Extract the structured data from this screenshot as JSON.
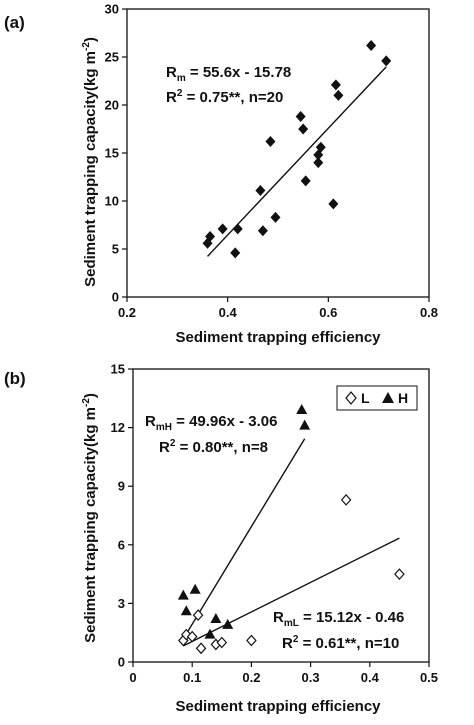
{
  "chart_data": [
    {
      "type": "scatter",
      "panel_label": "(a)",
      "xlabel": "Sediment trapping efficiency",
      "ylabel": "Sediment trapping capacity(kg m",
      "ylabel_sup": "-2",
      "ylabel_close": ")",
      "xlim": [
        0.2,
        0.8
      ],
      "ylim": [
        0,
        30
      ],
      "xticks": [
        "0.2",
        "0.4",
        "0.6",
        "0.8"
      ],
      "yticks": [
        "0",
        "5",
        "10",
        "15",
        "20",
        "25",
        "30"
      ],
      "grid": false,
      "equation_lines": [
        {
          "main": "R",
          "sub": "m",
          "rest": " = 55.6x - 15.78"
        },
        {
          "main": "R",
          "sup": "2",
          "rest": " = 0.75**, n=20"
        }
      ],
      "fit": {
        "slope": 55.6,
        "intercept": -15.78,
        "x_range": [
          0.36,
          0.715
        ]
      },
      "series": [
        {
          "marker": "filled-diamond",
          "points": [
            [
              0.36,
              5.6
            ],
            [
              0.365,
              6.3
            ],
            [
              0.39,
              7.1
            ],
            [
              0.415,
              4.6
            ],
            [
              0.42,
              7.1
            ],
            [
              0.465,
              11.1
            ],
            [
              0.47,
              6.9
            ],
            [
              0.485,
              16.2
            ],
            [
              0.495,
              8.3
            ],
            [
              0.545,
              18.8
            ],
            [
              0.55,
              17.5
            ],
            [
              0.555,
              12.1
            ],
            [
              0.58,
              14.0
            ],
            [
              0.58,
              14.8
            ],
            [
              0.585,
              15.6
            ],
            [
              0.61,
              9.7
            ],
            [
              0.615,
              22.1
            ],
            [
              0.62,
              21.0
            ],
            [
              0.685,
              26.2
            ],
            [
              0.715,
              24.6
            ]
          ]
        }
      ]
    },
    {
      "type": "scatter",
      "panel_label": "(b)",
      "xlabel": "Sediment trapping efficiency",
      "ylabel": "Sediment trapping capacity(kg m",
      "ylabel_sup": "-2",
      "ylabel_close": ")",
      "xlim": [
        0,
        0.5
      ],
      "ylim": [
        0,
        15
      ],
      "xticks": [
        "0",
        "0.1",
        "0.2",
        "0.3",
        "0.4",
        "0.5"
      ],
      "yticks": [
        "0",
        "3",
        "6",
        "9",
        "12",
        "15"
      ],
      "grid": false,
      "legend_position": "top-right",
      "equation_lines_H": [
        {
          "main": "R",
          "sub": "mH",
          "rest": " = 49.96x - 3.06"
        },
        {
          "main": "R",
          "sup": "2",
          "rest": " = 0.80**, n=8"
        }
      ],
      "equation_lines_L": [
        {
          "main": "R",
          "sub": "mL",
          "rest": " = 15.12x - 0.46"
        },
        {
          "main": "R",
          "sup": "2",
          "rest": " = 0.61**, n=10"
        }
      ],
      "fits": [
        {
          "series": "H",
          "slope": 49.96,
          "intercept": -3.06,
          "x_range": [
            0.087,
            0.29
          ]
        },
        {
          "series": "L",
          "slope": 15.12,
          "intercept": -0.46,
          "x_range": [
            0.085,
            0.45
          ]
        }
      ],
      "series": [
        {
          "name": "L",
          "marker": "open-diamond",
          "points": [
            [
              0.085,
              1.1
            ],
            [
              0.09,
              1.4
            ],
            [
              0.1,
              1.3
            ],
            [
              0.11,
              2.4
            ],
            [
              0.115,
              0.7
            ],
            [
              0.14,
              0.9
            ],
            [
              0.15,
              1.0
            ],
            [
              0.2,
              1.1
            ],
            [
              0.36,
              8.3
            ],
            [
              0.45,
              4.5
            ]
          ]
        },
        {
          "name": "H",
          "marker": "filled-triangle",
          "points": [
            [
              0.085,
              3.4
            ],
            [
              0.09,
              2.6
            ],
            [
              0.105,
              3.7
            ],
            [
              0.13,
              1.4
            ],
            [
              0.14,
              2.2
            ],
            [
              0.16,
              1.9
            ],
            [
              0.285,
              12.9
            ],
            [
              0.29,
              12.1
            ]
          ]
        }
      ]
    }
  ]
}
